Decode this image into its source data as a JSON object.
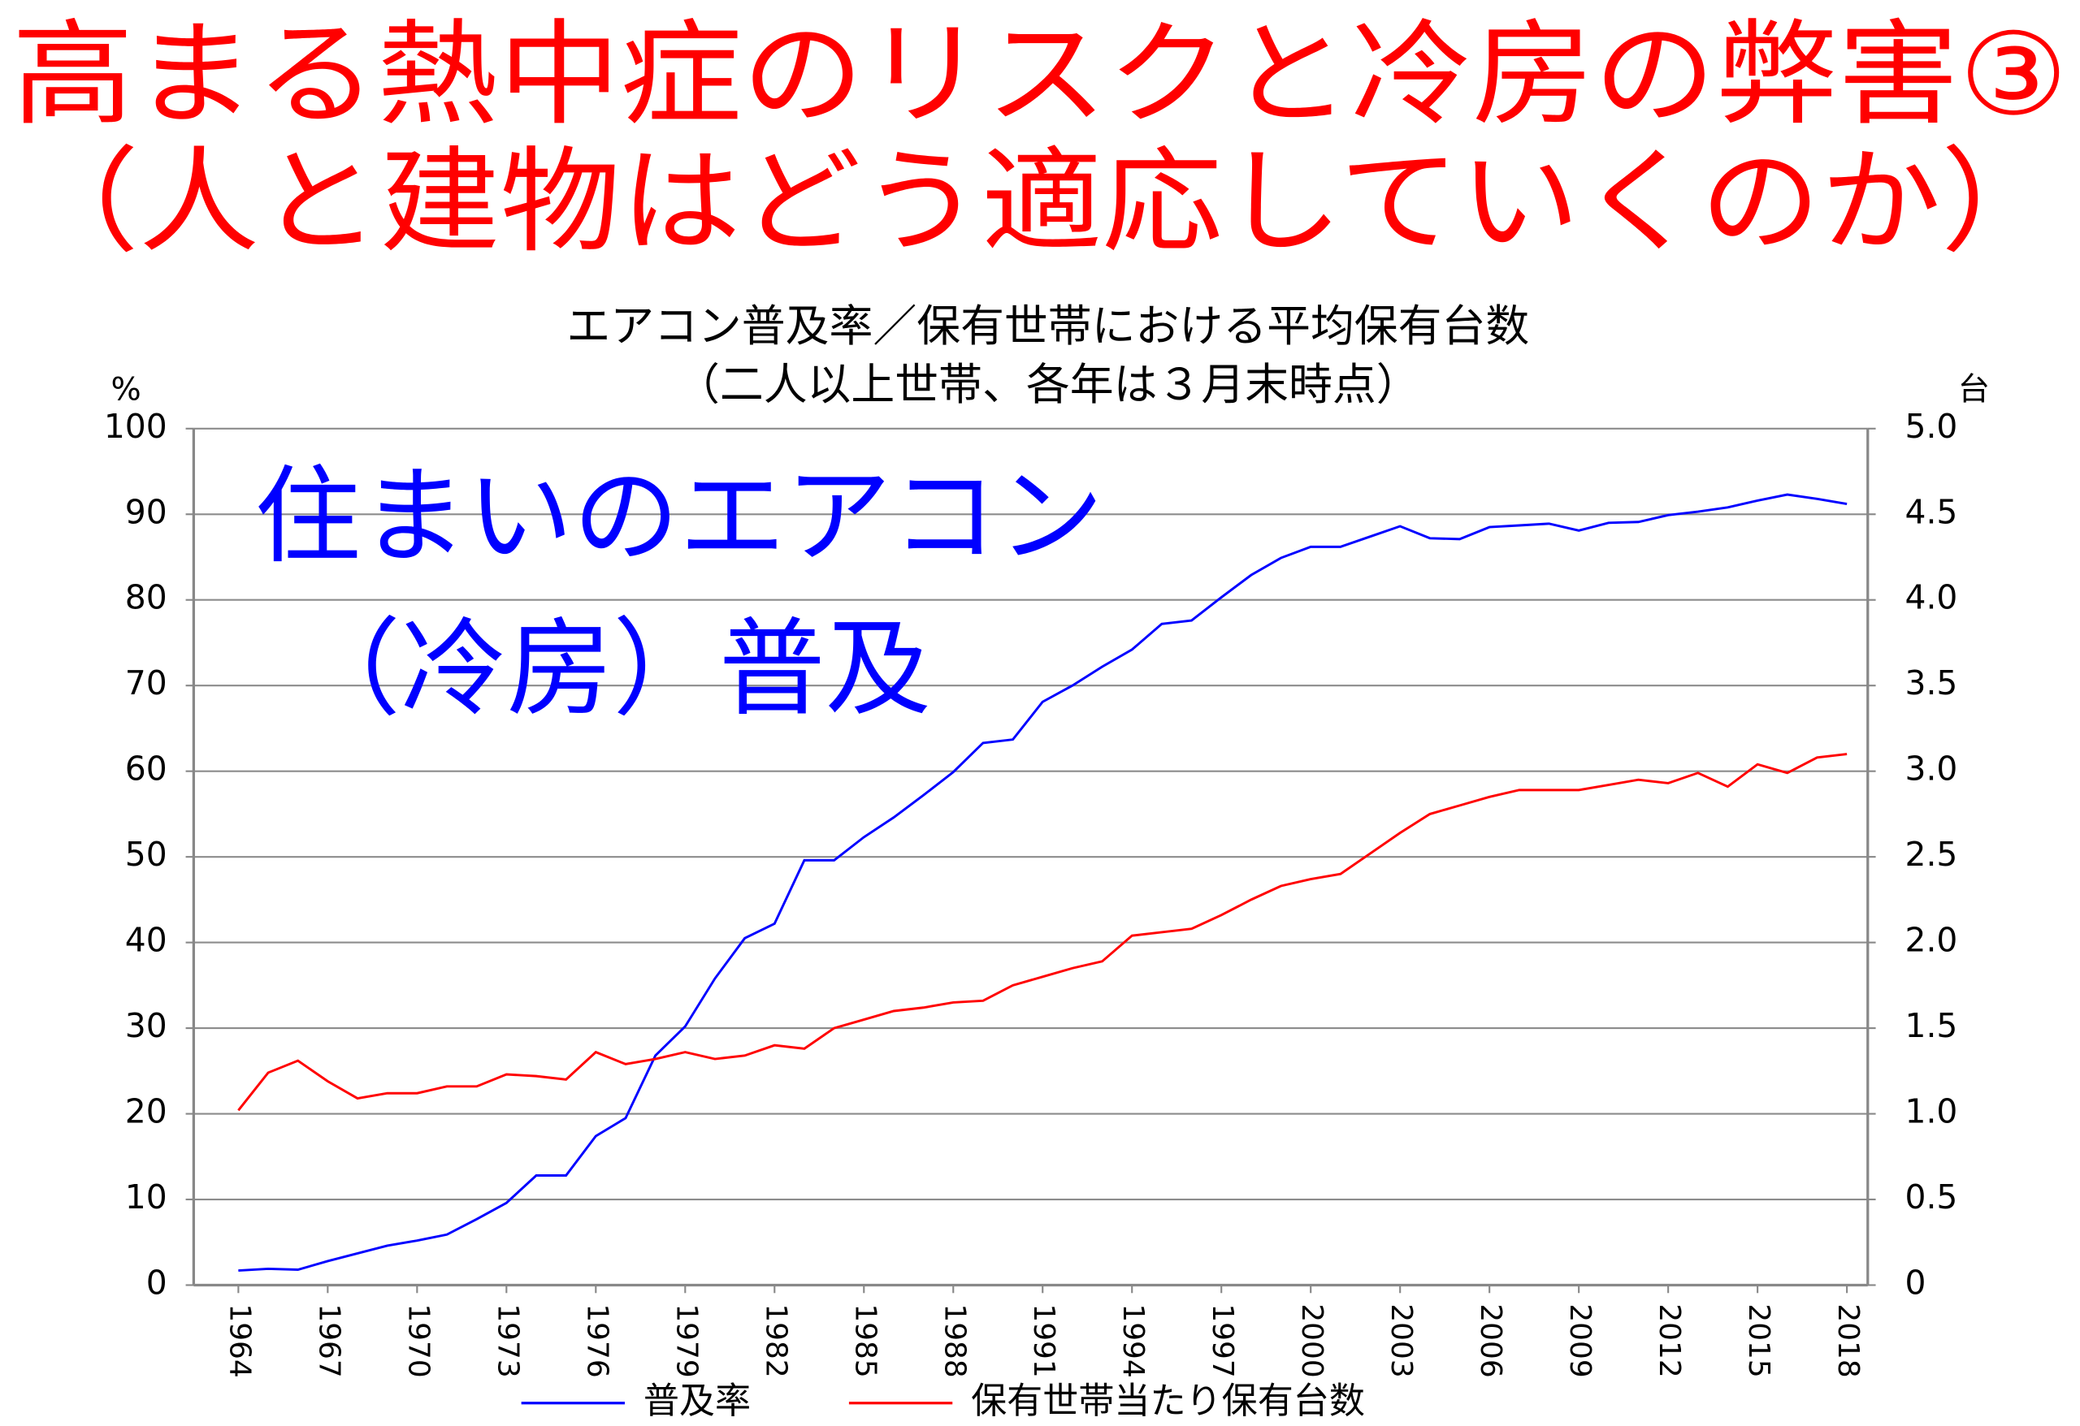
{
  "header": {
    "title_lines": [
      "高まる熱中症のリスクと冷房の弊害③",
      "（人と建物はどう適応していくのか）"
    ]
  },
  "chart_data": {
    "type": "line",
    "title": "エアコン普及率／保有世帯における平均保有台数",
    "subtitle": "（二人以上世帯、各年は３月末時点）",
    "y_label": "%",
    "y2_label": "台",
    "annotation_lines": [
      "住まいのエアコン",
      "（冷房）普及"
    ],
    "x": [
      1964,
      1965,
      1966,
      1967,
      1968,
      1969,
      1970,
      1971,
      1972,
      1973,
      1974,
      1975,
      1976,
      1977,
      1978,
      1979,
      1980,
      1981,
      1982,
      1983,
      1984,
      1985,
      1986,
      1987,
      1988,
      1989,
      1990,
      1991,
      1992,
      1993,
      1994,
      1995,
      1996,
      1997,
      1998,
      1999,
      2000,
      2001,
      2002,
      2003,
      2004,
      2005,
      2006,
      2007,
      2008,
      2009,
      2010,
      2011,
      2012,
      2013,
      2014,
      2015,
      2016,
      2017,
      2018
    ],
    "xlim": [
      1962.5,
      2018.7
    ],
    "xticks": [
      1964,
      1967,
      1970,
      1973,
      1976,
      1979,
      1982,
      1985,
      1988,
      1991,
      1994,
      1997,
      2000,
      2003,
      2006,
      2009,
      2012,
      2015,
      2018
    ],
    "ylim": [
      0,
      100
    ],
    "yticks": [
      0,
      10,
      20,
      30,
      40,
      50,
      60,
      70,
      80,
      90,
      100
    ],
    "y2lim": [
      0,
      5
    ],
    "y2ticks": [
      0,
      0.5,
      {
        "value": 1,
        "label": "1.0"
      },
      1.5,
      {
        "value": 2,
        "label": "2.0"
      },
      2.5,
      {
        "value": 3,
        "label": "3.0"
      },
      3.5,
      {
        "value": 4,
        "label": "4.0"
      },
      4.5,
      {
        "value": 5,
        "label": "5.0"
      }
    ],
    "grid": true,
    "legend": "bottom",
    "series": [
      {
        "name": "普及率",
        "color": "#0000ff",
        "values": [
          1.7,
          1.9,
          1.8,
          2.8,
          3.7,
          4.6,
          5.2,
          5.9,
          7.7,
          9.6,
          12.8,
          12.8,
          17.4,
          19.5,
          26.8,
          30.2,
          35.8,
          40.5,
          42.2,
          49.6,
          49.6,
          52.3,
          54.6,
          57.2,
          59.9,
          63.3,
          63.7,
          68.1,
          70.0,
          72.2,
          74.2,
          77.2,
          77.6,
          80.3,
          82.9,
          84.9,
          86.2,
          86.2,
          87.4,
          88.6,
          87.2,
          87.1,
          88.5,
          88.7,
          88.9,
          88.1,
          89.0,
          89.1,
          89.9,
          90.3,
          90.8,
          91.6,
          92.3,
          91.8,
          91.2
        ]
      },
      {
        "name": "保有世帯当たり保有台数",
        "color": "#ff0000",
        "axis": "y2",
        "values": [
          1.02,
          1.24,
          1.31,
          1.19,
          1.09,
          1.12,
          1.12,
          1.16,
          1.16,
          1.23,
          1.22,
          1.2,
          1.36,
          1.29,
          1.32,
          1.36,
          1.32,
          1.34,
          1.4,
          1.38,
          1.5,
          1.55,
          1.6,
          1.62,
          1.65,
          1.66,
          1.75,
          1.8,
          1.85,
          1.89,
          2.04,
          2.06,
          2.08,
          2.16,
          2.25,
          2.33,
          2.37,
          2.4,
          2.52,
          2.64,
          2.75,
          2.8,
          2.85,
          2.89,
          2.89,
          2.89,
          2.92,
          2.95,
          2.93,
          2.99,
          2.91,
          3.04,
          2.99,
          3.08,
          3.1
        ]
      }
    ]
  }
}
